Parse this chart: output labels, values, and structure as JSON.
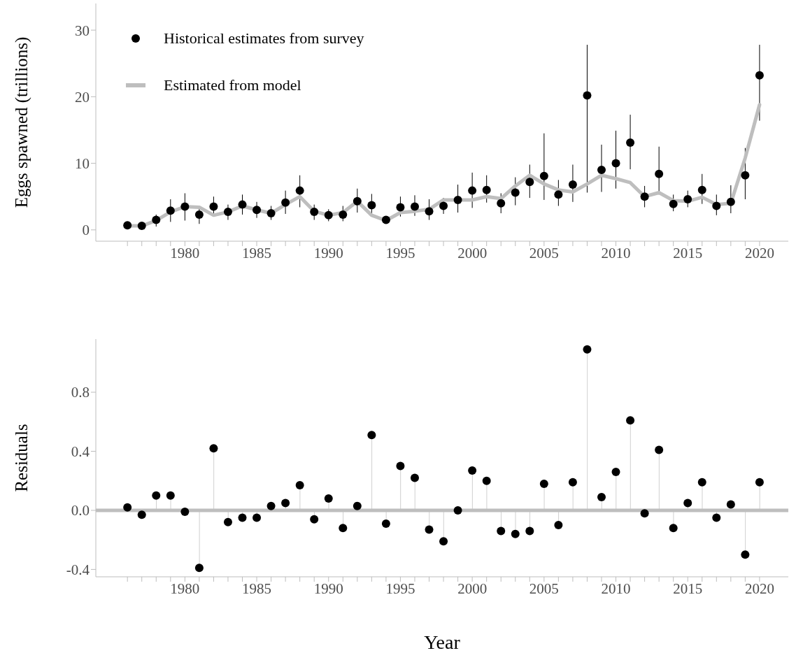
{
  "chart_data": [
    {
      "type": "scatter",
      "ylabel": "Eggs spawned (trillions)",
      "legend": "top left",
      "x": [
        1976,
        1977,
        1978,
        1979,
        1980,
        1981,
        1982,
        1983,
        1984,
        1985,
        1986,
        1987,
        1988,
        1989,
        1990,
        1991,
        1992,
        1993,
        1994,
        1995,
        1996,
        1997,
        1998,
        1999,
        2000,
        2001,
        2002,
        2003,
        2004,
        2005,
        2006,
        2007,
        2008,
        2009,
        2010,
        2011,
        2012,
        2013,
        2014,
        2015,
        2016,
        2017,
        2018,
        2019,
        2020
      ],
      "series": [
        {
          "name": "Historical estimates from survey",
          "type": "scatter",
          "marker": "circle",
          "color": "#000000",
          "values": [
            0.7,
            0.6,
            1.5,
            2.9,
            3.5,
            2.3,
            3.5,
            2.7,
            3.8,
            3.0,
            2.5,
            4.1,
            5.9,
            2.7,
            2.2,
            2.3,
            4.3,
            3.7,
            1.5,
            3.4,
            3.5,
            2.8,
            3.6,
            4.5,
            5.9,
            6.0,
            4.0,
            5.6,
            7.2,
            8.1,
            5.3,
            6.8,
            20.2,
            9.0,
            10.0,
            13.1,
            5.0,
            8.4,
            3.9,
            4.6,
            6.0,
            3.6,
            4.2,
            8.2,
            23.2
          ],
          "errors": [
            null,
            null,
            [
              0.5,
              2.3
            ],
            [
              1.2,
              4.6
            ],
            [
              1.4,
              5.5
            ],
            [
              0.9,
              3.6
            ],
            [
              2.1,
              5.0
            ],
            [
              1.5,
              3.8
            ],
            [
              2.3,
              5.3
            ],
            [
              1.8,
              4.2
            ],
            [
              1.5,
              3.6
            ],
            [
              2.4,
              5.9
            ],
            [
              3.4,
              8.2
            ],
            [
              1.5,
              3.8
            ],
            [
              1.3,
              3.1
            ],
            [
              1.3,
              3.6
            ],
            [
              2.6,
              6.2
            ],
            [
              2.3,
              5.4
            ],
            null,
            [
              2.0,
              5.0
            ],
            [
              2.1,
              5.2
            ],
            [
              1.5,
              4.6
            ],
            [
              2.4,
              4.8
            ],
            [
              2.6,
              6.8
            ],
            [
              3.3,
              8.6
            ],
            [
              4.1,
              8.2
            ],
            [
              2.5,
              5.5
            ],
            [
              3.7,
              7.9
            ],
            [
              4.8,
              9.8
            ],
            [
              4.5,
              14.5
            ],
            [
              3.6,
              7.5
            ],
            [
              4.2,
              9.8
            ],
            [
              5.6,
              27.8
            ],
            [
              5.7,
              12.8
            ],
            [
              6.2,
              14.9
            ],
            [
              9.1,
              17.3
            ],
            [
              3.4,
              6.6
            ],
            [
              5.4,
              12.5
            ],
            [
              2.8,
              5.3
            ],
            [
              3.4,
              5.9
            ],
            [
              3.9,
              8.4
            ],
            [
              2.2,
              5.3
            ],
            [
              2.5,
              6.7
            ],
            [
              4.6,
              12.3
            ],
            [
              16.4,
              27.8
            ]
          ]
        },
        {
          "name": "Estimated from model",
          "type": "line",
          "marker": "none",
          "color": "#bebebe",
          "values": [
            0.6,
            0.6,
            1.4,
            2.7,
            3.5,
            3.4,
            2.2,
            2.7,
            3.6,
            3.0,
            2.5,
            3.8,
            5.0,
            2.8,
            2.2,
            2.6,
            4.3,
            2.2,
            1.4,
            2.6,
            2.8,
            3.1,
            4.5,
            4.5,
            4.5,
            5.0,
            4.7,
            6.6,
            8.2,
            6.9,
            6.0,
            5.7,
            6.9,
            8.2,
            7.7,
            7.1,
            5.0,
            5.6,
            4.4,
            4.3,
            4.9,
            3.8,
            4.0,
            10.8,
            18.8
          ]
        }
      ],
      "xlim": [
        1973.8,
        2022
      ],
      "ylim": [
        -1.7,
        34
      ],
      "yticks": [
        0,
        10,
        20,
        30
      ],
      "xticks": [
        {
          "value": 1976,
          "label": null
        },
        {
          "value": 1977,
          "label": null
        },
        {
          "value": 1978,
          "label": null
        },
        {
          "value": 1979,
          "label": null
        },
        1980,
        {
          "value": 1981,
          "label": null
        },
        {
          "value": 1982,
          "label": null
        },
        {
          "value": 1983,
          "label": null
        },
        {
          "value": 1984,
          "label": null
        },
        1985,
        {
          "value": 1986,
          "label": null
        },
        {
          "value": 1987,
          "label": null
        },
        {
          "value": 1988,
          "label": null
        },
        {
          "value": 1989,
          "label": null
        },
        1990,
        {
          "value": 1991,
          "label": null
        },
        {
          "value": 1992,
          "label": null
        },
        {
          "value": 1993,
          "label": null
        },
        {
          "value": 1994,
          "label": null
        },
        1995,
        {
          "value": 1996,
          "label": null
        },
        {
          "value": 1997,
          "label": null
        },
        {
          "value": 1998,
          "label": null
        },
        {
          "value": 1999,
          "label": null
        },
        2000,
        {
          "value": 2001,
          "label": null
        },
        {
          "value": 2002,
          "label": null
        },
        {
          "value": 2003,
          "label": null
        },
        {
          "value": 2004,
          "label": null
        },
        2005,
        {
          "value": 2006,
          "label": null
        },
        {
          "value": 2007,
          "label": null
        },
        {
          "value": 2008,
          "label": null
        },
        {
          "value": 2009,
          "label": null
        },
        2010,
        {
          "value": 2011,
          "label": null
        },
        {
          "value": 2012,
          "label": null
        },
        {
          "value": 2013,
          "label": null
        },
        {
          "value": 2014,
          "label": null
        },
        2015,
        {
          "value": 2016,
          "label": null
        },
        {
          "value": 2017,
          "label": null
        },
        {
          "value": 2018,
          "label": null
        },
        {
          "value": 2019,
          "label": null
        },
        2020
      ]
    },
    {
      "type": "lollipop",
      "ylabel": "Residuals",
      "xlabel": "Year",
      "x": [
        1976,
        1977,
        1978,
        1979,
        1980,
        1981,
        1982,
        1983,
        1984,
        1985,
        1986,
        1987,
        1988,
        1989,
        1990,
        1991,
        1992,
        1993,
        1994,
        1995,
        1996,
        1997,
        1998,
        1999,
        2000,
        2001,
        2002,
        2003,
        2004,
        2005,
        2006,
        2007,
        2008,
        2009,
        2010,
        2011,
        2012,
        2013,
        2014,
        2015,
        2016,
        2017,
        2018,
        2019,
        2020
      ],
      "color": "#000000",
      "values": [
        0.02,
        -0.03,
        0.1,
        0.1,
        -0.01,
        -0.39,
        0.42,
        -0.08,
        -0.05,
        -0.05,
        0.03,
        0.05,
        0.17,
        -0.06,
        0.08,
        -0.12,
        0.03,
        0.51,
        -0.09,
        0.3,
        0.22,
        -0.13,
        -0.21,
        0.0,
        0.27,
        0.2,
        -0.14,
        -0.16,
        -0.14,
        0.18,
        -0.1,
        0.19,
        1.09,
        0.09,
        0.26,
        0.61,
        -0.02,
        0.41,
        -0.12,
        0.05,
        0.19,
        -0.05,
        0.04,
        -0.3,
        0.19
      ],
      "ref_lines": [
        {
          "axis": "y",
          "value": 0,
          "color": "#bebebe"
        }
      ],
      "xlim": [
        1973.8,
        2022
      ],
      "ylim": [
        -0.45,
        1.16
      ],
      "yticks": [
        -0.4,
        {
          "value": 0,
          "label": "0.0"
        },
        0.4,
        0.8
      ],
      "xticks": [
        {
          "value": 1976,
          "label": null
        },
        {
          "value": 1977,
          "label": null
        },
        {
          "value": 1978,
          "label": null
        },
        {
          "value": 1979,
          "label": null
        },
        1980,
        {
          "value": 1981,
          "label": null
        },
        {
          "value": 1982,
          "label": null
        },
        {
          "value": 1983,
          "label": null
        },
        {
          "value": 1984,
          "label": null
        },
        1985,
        {
          "value": 1986,
          "label": null
        },
        {
          "value": 1987,
          "label": null
        },
        {
          "value": 1988,
          "label": null
        },
        {
          "value": 1989,
          "label": null
        },
        1990,
        {
          "value": 1991,
          "label": null
        },
        {
          "value": 1992,
          "label": null
        },
        {
          "value": 1993,
          "label": null
        },
        {
          "value": 1994,
          "label": null
        },
        1995,
        {
          "value": 1996,
          "label": null
        },
        {
          "value": 1997,
          "label": null
        },
        {
          "value": 1998,
          "label": null
        },
        {
          "value": 1999,
          "label": null
        },
        2000,
        {
          "value": 2001,
          "label": null
        },
        {
          "value": 2002,
          "label": null
        },
        {
          "value": 2003,
          "label": null
        },
        {
          "value": 2004,
          "label": null
        },
        2005,
        {
          "value": 2006,
          "label": null
        },
        {
          "value": 2007,
          "label": null
        },
        {
          "value": 2008,
          "label": null
        },
        {
          "value": 2009,
          "label": null
        },
        2010,
        {
          "value": 2011,
          "label": null
        },
        {
          "value": 2012,
          "label": null
        },
        {
          "value": 2013,
          "label": null
        },
        {
          "value": 2014,
          "label": null
        },
        2015,
        {
          "value": 2016,
          "label": null
        },
        {
          "value": 2017,
          "label": null
        },
        {
          "value": 2018,
          "label": null
        },
        {
          "value": 2019,
          "label": null
        },
        2020
      ]
    }
  ]
}
